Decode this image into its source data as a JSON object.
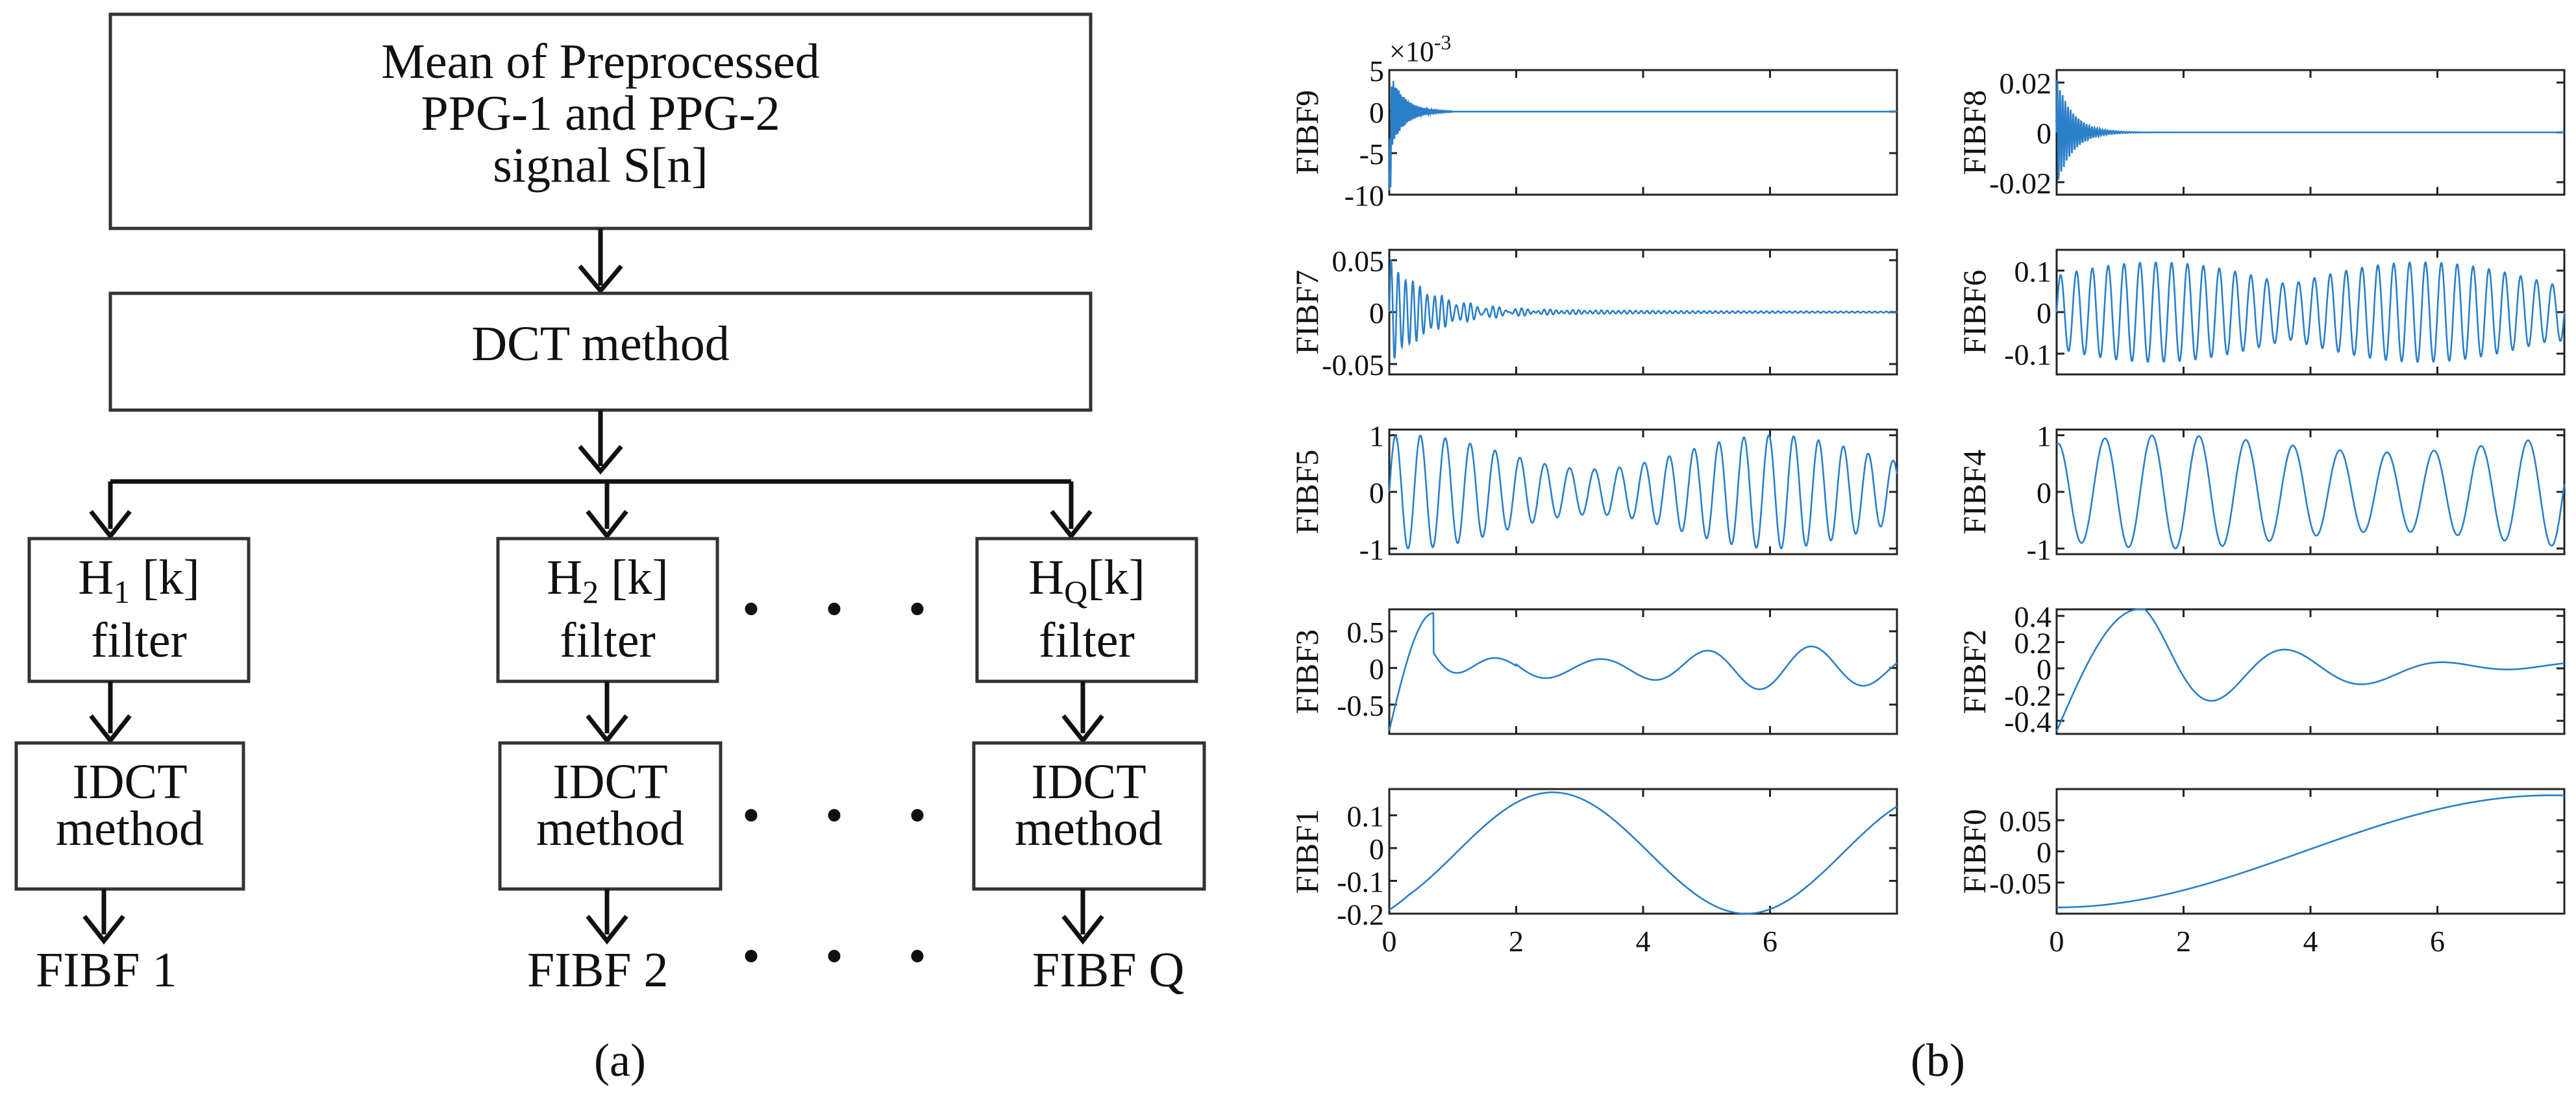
{
  "flowchart": {
    "top_box": [
      "Mean of Preprocessed",
      "PPG-1 and PPG-2",
      "signal S[n]"
    ],
    "dct_box": "DCT method",
    "filters": [
      {
        "base": "H",
        "sub": "1",
        "bracket": " [k]",
        "label": "filter"
      },
      {
        "base": "H",
        "sub": "2",
        "bracket": " [k]",
        "label": "filter"
      },
      {
        "base": "H",
        "sub": "Q",
        "bracket": "[k]",
        "label": "filter"
      }
    ],
    "idct_box": [
      "IDCT",
      "method"
    ],
    "outputs": [
      "FIBF 1",
      "FIBF 2",
      "FIBF Q"
    ],
    "ellipsis": "• • •"
  },
  "captions": {
    "a": "(a)",
    "b": "(b)"
  },
  "chart_data": {
    "type": "line",
    "title": "",
    "xlabel": "",
    "x_ticks": [
      "0",
      "2",
      "4",
      "6"
    ],
    "xlim": [
      0,
      8
    ],
    "panels": [
      {
        "name": "FIBF9",
        "ylim": [
          -0.01,
          0.005
        ],
        "yticks": [
          "5",
          "0",
          "-5",
          "-10"
        ],
        "exponent": "×10",
        "exponent_power": "-3",
        "shape": "decaying high-frequency burst near 0"
      },
      {
        "name": "FIBF8",
        "ylim": [
          -0.025,
          0.025
        ],
        "yticks": [
          "0.02",
          "0",
          "-0.02"
        ],
        "shape": "decaying high-frequency burst near 0"
      },
      {
        "name": "FIBF7",
        "ylim": [
          -0.06,
          0.06
        ],
        "yticks": [
          "0.05",
          "0",
          "-0.05"
        ],
        "shape": "decaying oscillation near 0"
      },
      {
        "name": "FIBF6",
        "ylim": [
          -0.15,
          0.15
        ],
        "yticks": [
          "0.1",
          "0",
          "-0.1"
        ],
        "shape": "modulated oscillation amplitude ~0.12"
      },
      {
        "name": "FIBF5",
        "ylim": [
          -1.1,
          1.1
        ],
        "yticks": [
          "1",
          "0",
          "-1"
        ],
        "shape": "oscillation ~20 cycles amplitude ~1"
      },
      {
        "name": "FIBF4",
        "ylim": [
          -1.1,
          1.1
        ],
        "yticks": [
          "1",
          "0",
          "-1"
        ],
        "shape": "oscillation ~11 cycles amplitude ~1"
      },
      {
        "name": "FIBF3",
        "ylim": [
          -0.9,
          0.8
        ],
        "yticks": [
          "0.5",
          "0",
          "-0.5"
        ],
        "shape": "damped oscillation peak 0.75 near x=0.7"
      },
      {
        "name": "FIBF2",
        "ylim": [
          -0.5,
          0.45
        ],
        "yticks": [
          "0.4",
          "0.2",
          "0",
          "-0.2",
          "-0.4"
        ],
        "shape": "damped oscillation peak 0.45 near x=1.3"
      },
      {
        "name": "FIBF1",
        "ylim": [
          -0.2,
          0.18
        ],
        "yticks": [
          "0.1",
          "0",
          "-0.1",
          "-0.2"
        ],
        "shape": "slow wave peak 0.17 near x=3"
      },
      {
        "name": "FIBF0",
        "ylim": [
          -0.1,
          0.1
        ],
        "yticks": [
          "0.05",
          "0",
          "-0.05"
        ],
        "shape": "monotonic rise from -0.09 to 0.09"
      }
    ]
  }
}
